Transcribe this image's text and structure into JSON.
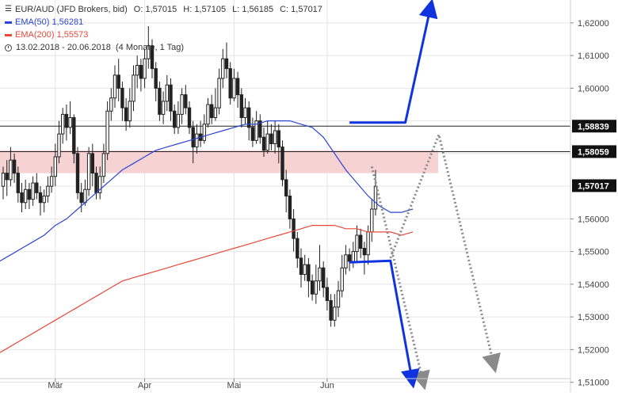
{
  "header": {
    "instrument": "EUR/AUD (JFD Brokers, bid)",
    "ohlc": {
      "open_label": "O:",
      "open": "1,57015",
      "high_label": "H:",
      "high": "1,57105",
      "low_label": "L:",
      "low": "1,56185",
      "close_label": "C:",
      "close": "1,57017"
    },
    "ema50_label": "EMA(50)",
    "ema50_value": "1,56281",
    "ema200_label": "EMA(200)",
    "ema200_value": "1,55573",
    "period": "13.02.2018 - 20.06.2018",
    "period_note": "(4 Monate, 1 Tag)"
  },
  "colors": {
    "ema50": "#2a45d6",
    "ema200": "#e8493a",
    "candle": "#222222",
    "zone": "#f6d2d2",
    "arrow_blue": "#1033e0",
    "arrow_dotted": "#8a8a8a",
    "grid": "#e4e4e4",
    "level": "#222222"
  },
  "chart_data": {
    "type": "candlestick",
    "x_axis": {
      "ticks": [
        "Mär",
        "Apr",
        "Mai",
        "Jun"
      ]
    },
    "y_axis": {
      "range": [
        1.507,
        1.627
      ],
      "ticks": [
        1.62,
        1.61,
        1.6,
        1.59,
        1.58,
        1.57,
        1.56,
        1.55,
        1.54,
        1.53,
        1.52,
        1.51
      ],
      "tick_labels": [
        "1,62000",
        "1,61000",
        "1,60000",
        "1,59000",
        "1,58000",
        "1,57000",
        "1,56000",
        "1,55000",
        "1,54000",
        "1,53000",
        "1,52000",
        "1,51000"
      ]
    },
    "grid": true,
    "levels": [
      {
        "value": 1.58839,
        "label": "1,58839"
      },
      {
        "value": 1.58059,
        "label": "1,58059"
      }
    ],
    "last_price": {
      "value": 1.57017,
      "label": "1,57017"
    },
    "resistance_zone": {
      "y_from": 1.574,
      "y_to": 1.581
    },
    "candles": [
      [
        1.57,
        1.574,
        1.576,
        1.566
      ],
      [
        1.574,
        1.572,
        1.578,
        1.567
      ],
      [
        1.572,
        1.578,
        1.582,
        1.57
      ],
      [
        1.578,
        1.574,
        1.58,
        1.571
      ],
      [
        1.574,
        1.568,
        1.576,
        1.565
      ],
      [
        1.568,
        1.565,
        1.571,
        1.562
      ],
      [
        1.565,
        1.569,
        1.572,
        1.563
      ],
      [
        1.569,
        1.566,
        1.571,
        1.563
      ],
      [
        1.566,
        1.571,
        1.573,
        1.564
      ],
      [
        1.571,
        1.568,
        1.574,
        1.566
      ],
      [
        1.568,
        1.565,
        1.57,
        1.561
      ],
      [
        1.565,
        1.567,
        1.569,
        1.562
      ],
      [
        1.567,
        1.57,
        1.573,
        1.565
      ],
      [
        1.57,
        1.573,
        1.576,
        1.568
      ],
      [
        1.573,
        1.579,
        1.583,
        1.57
      ],
      [
        1.579,
        1.586,
        1.59,
        1.577
      ],
      [
        1.586,
        1.592,
        1.594,
        1.583
      ],
      [
        1.592,
        1.588,
        1.595,
        1.584
      ],
      [
        1.588,
        1.591,
        1.596,
        1.586
      ],
      [
        1.591,
        1.58,
        1.592,
        1.577
      ],
      [
        1.58,
        1.568,
        1.582,
        1.566
      ],
      [
        1.568,
        1.565,
        1.571,
        1.562
      ],
      [
        1.565,
        1.569,
        1.572,
        1.564
      ],
      [
        1.569,
        1.58,
        1.582,
        1.567
      ],
      [
        1.58,
        1.574,
        1.583,
        1.57
      ],
      [
        1.574,
        1.568,
        1.576,
        1.566
      ],
      [
        1.568,
        1.573,
        1.576,
        1.566
      ],
      [
        1.573,
        1.58,
        1.583,
        1.571
      ],
      [
        1.58,
        1.593,
        1.596,
        1.578
      ],
      [
        1.593,
        1.597,
        1.6,
        1.59
      ],
      [
        1.597,
        1.604,
        1.607,
        1.594
      ],
      [
        1.604,
        1.6,
        1.609,
        1.596
      ],
      [
        1.6,
        1.594,
        1.602,
        1.59
      ],
      [
        1.594,
        1.59,
        1.597,
        1.587
      ],
      [
        1.59,
        1.596,
        1.6,
        1.588
      ],
      [
        1.596,
        1.604,
        1.607,
        1.593
      ],
      [
        1.604,
        1.607,
        1.61,
        1.6
      ],
      [
        1.607,
        1.603,
        1.609,
        1.599
      ],
      [
        1.603,
        1.609,
        1.612,
        1.6
      ],
      [
        1.609,
        1.613,
        1.619,
        1.606
      ],
      [
        1.613,
        1.606,
        1.615,
        1.603
      ],
      [
        1.606,
        1.6,
        1.608,
        1.596
      ],
      [
        1.6,
        1.592,
        1.602,
        1.59
      ],
      [
        1.592,
        1.596,
        1.599,
        1.589
      ],
      [
        1.596,
        1.601,
        1.604,
        1.593
      ],
      [
        1.601,
        1.593,
        1.603,
        1.59
      ],
      [
        1.593,
        1.588,
        1.595,
        1.586
      ],
      [
        1.588,
        1.592,
        1.596,
        1.586
      ],
      [
        1.592,
        1.598,
        1.6,
        1.589
      ],
      [
        1.598,
        1.594,
        1.601,
        1.592
      ],
      [
        1.594,
        1.588,
        1.596,
        1.586
      ],
      [
        1.588,
        1.582,
        1.59,
        1.577
      ],
      [
        1.582,
        1.586,
        1.589,
        1.58
      ],
      [
        1.586,
        1.584,
        1.59,
        1.582
      ],
      [
        1.584,
        1.589,
        1.592,
        1.583
      ],
      [
        1.589,
        1.595,
        1.597,
        1.588
      ],
      [
        1.595,
        1.591,
        1.598,
        1.589
      ],
      [
        1.591,
        1.594,
        1.6,
        1.59
      ],
      [
        1.594,
        1.603,
        1.606,
        1.592
      ],
      [
        1.603,
        1.609,
        1.612,
        1.6
      ],
      [
        1.609,
        1.606,
        1.614,
        1.603
      ],
      [
        1.606,
        1.597,
        1.608,
        1.595
      ],
      [
        1.597,
        1.603,
        1.606,
        1.596
      ],
      [
        1.603,
        1.598,
        1.605,
        1.594
      ],
      [
        1.598,
        1.591,
        1.6,
        1.588
      ],
      [
        1.591,
        1.594,
        1.597,
        1.589
      ],
      [
        1.594,
        1.588,
        1.596,
        1.584
      ],
      [
        1.588,
        1.584,
        1.591,
        1.582
      ],
      [
        1.584,
        1.59,
        1.593,
        1.583
      ],
      [
        1.59,
        1.585,
        1.592,
        1.583
      ],
      [
        1.585,
        1.581,
        1.588,
        1.579
      ],
      [
        1.581,
        1.586,
        1.59,
        1.58
      ],
      [
        1.586,
        1.583,
        1.589,
        1.581
      ],
      [
        1.583,
        1.587,
        1.59,
        1.58
      ],
      [
        1.587,
        1.582,
        1.589,
        1.577
      ],
      [
        1.582,
        1.572,
        1.584,
        1.57
      ],
      [
        1.572,
        1.567,
        1.575,
        1.562
      ],
      [
        1.567,
        1.56,
        1.569,
        1.557
      ],
      [
        1.56,
        1.554,
        1.563,
        1.55
      ],
      [
        1.554,
        1.548,
        1.556,
        1.545
      ],
      [
        1.548,
        1.543,
        1.551,
        1.539
      ],
      [
        1.543,
        1.546,
        1.549,
        1.541
      ],
      [
        1.546,
        1.541,
        1.548,
        1.536
      ],
      [
        1.541,
        1.537,
        1.543,
        1.535
      ],
      [
        1.537,
        1.541,
        1.546,
        1.534
      ],
      [
        1.541,
        1.545,
        1.552,
        1.538
      ],
      [
        1.545,
        1.539,
        1.547,
        1.536
      ],
      [
        1.539,
        1.535,
        1.542,
        1.532
      ],
      [
        1.535,
        1.529,
        1.537,
        1.527
      ],
      [
        1.529,
        1.533,
        1.537,
        1.527
      ],
      [
        1.533,
        1.538,
        1.541,
        1.53
      ],
      [
        1.538,
        1.545,
        1.549,
        1.536
      ],
      [
        1.545,
        1.549,
        1.552,
        1.543
      ],
      [
        1.549,
        1.547,
        1.551,
        1.544
      ],
      [
        1.547,
        1.55,
        1.553,
        1.545
      ],
      [
        1.55,
        1.555,
        1.558,
        1.547
      ],
      [
        1.555,
        1.551,
        1.557,
        1.548
      ],
      [
        1.551,
        1.549,
        1.553,
        1.543
      ],
      [
        1.549,
        1.556,
        1.558,
        1.546
      ],
      [
        1.556,
        1.563,
        1.566,
        1.553
      ],
      [
        1.563,
        1.57,
        1.575,
        1.561
      ]
    ],
    "ema50": [
      1.547,
      1.549,
      1.551,
      1.553,
      1.555,
      1.558,
      1.56,
      1.563,
      1.566,
      1.569,
      1.572,
      1.575,
      1.577,
      1.579,
      1.581,
      1.582,
      1.583,
      1.584,
      1.585,
      1.586,
      1.587,
      1.588,
      1.589,
      1.589,
      1.59,
      1.59,
      1.59,
      1.589,
      1.588,
      1.585,
      1.58,
      1.575,
      1.571,
      1.567,
      1.564,
      1.562,
      1.562,
      1.563
    ],
    "ema200": [
      1.519,
      1.521,
      1.523,
      1.525,
      1.527,
      1.529,
      1.531,
      1.533,
      1.535,
      1.537,
      1.539,
      1.541,
      1.542,
      1.543,
      1.544,
      1.545,
      1.546,
      1.547,
      1.548,
      1.549,
      1.55,
      1.551,
      1.552,
      1.553,
      1.554,
      1.555,
      1.556,
      1.557,
      1.558,
      1.558,
      1.558,
      1.557,
      1.557,
      1.556,
      1.556,
      1.556,
      1.555,
      1.556
    ],
    "scenarios": {
      "blue_up": [
        [
          93,
          1.5895
        ],
        [
          108,
          1.5895
        ],
        [
          115,
          1.626
        ]
      ],
      "blue_down": [
        [
          93,
          1.5467
        ],
        [
          104,
          1.5472
        ],
        [
          110,
          1.5095
        ]
      ],
      "dotted_down": [
        [
          99,
          1.576
        ],
        [
          113,
          1.509
        ]
      ],
      "dotted_zigzag": [
        [
          104,
          1.548
        ],
        [
          117,
          1.5858
        ],
        [
          132,
          1.5142
        ]
      ]
    }
  }
}
